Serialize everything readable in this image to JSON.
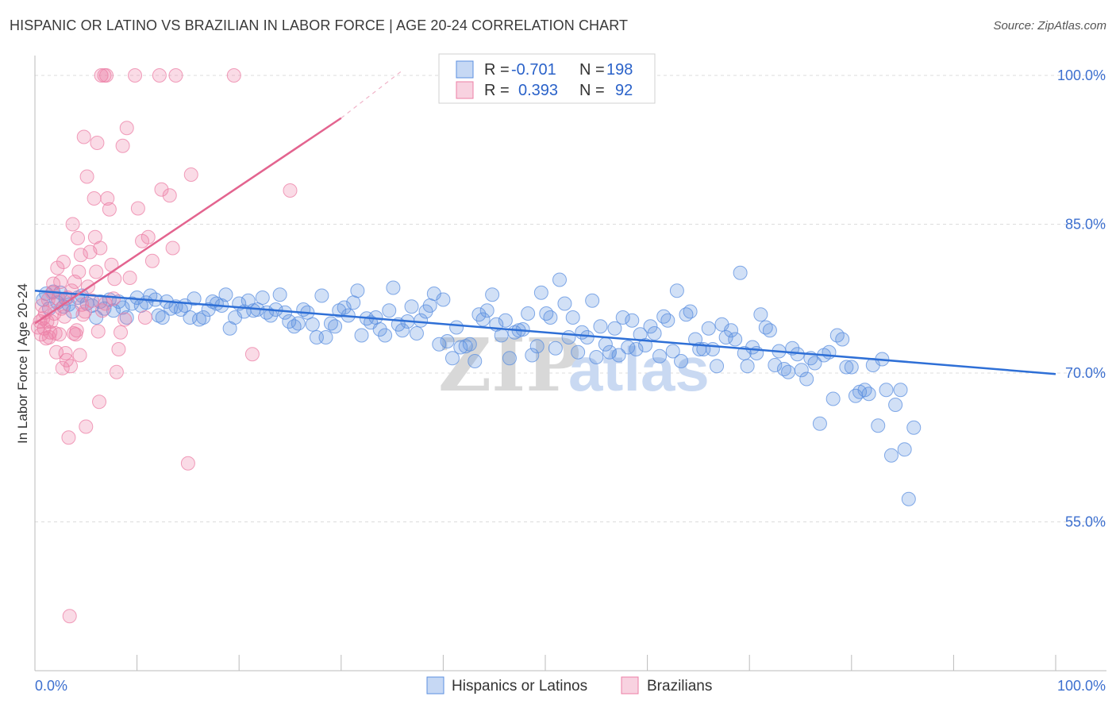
{
  "header": {
    "title": "HISPANIC OR LATINO VS BRAZILIAN IN LABOR FORCE | AGE 20-24 CORRELATION CHART",
    "source": "Source: ZipAtlas.com"
  },
  "watermark": {
    "zip": "ZIP",
    "atlas": "atlas"
  },
  "legend": {
    "rows": [
      {
        "r_label": "R =",
        "r_value": "-0.701",
        "n_label": "N =",
        "n_value": "198",
        "color": "#5b8fe0"
      },
      {
        "r_label": "R =",
        "r_value": "0.393",
        "n_label": "N =",
        "n_value": "92",
        "color": "#ec7fa6"
      }
    ]
  },
  "bottom_legend": [
    {
      "label": "Hispanics or Latinos",
      "color": "#5b8fe0"
    },
    {
      "label": "Brazilians",
      "color": "#ec7fa6"
    }
  ],
  "chart_data": {
    "type": "scatter",
    "title": "HISPANIC OR LATINO VS BRAZILIAN IN LABOR FORCE | AGE 20-24 CORRELATION CHART",
    "xlabel": "",
    "ylabel": "In Labor Force | Age 20-24",
    "xlim": [
      0,
      100
    ],
    "ylim": [
      40,
      102
    ],
    "x_tick_labels": [
      "0.0%",
      "100.0%"
    ],
    "y_ticks": [
      55,
      70,
      85,
      100
    ],
    "y_tick_labels": [
      "55.0%",
      "70.0%",
      "85.0%",
      "100.0%"
    ],
    "grid": true,
    "legend_position": "top-center",
    "series": [
      {
        "name": "Hispanics or Latinos",
        "color": "#5b8fe0",
        "trend": {
          "x": [
            0,
            100
          ],
          "y": [
            78.3,
            69.9
          ]
        },
        "points": [
          [
            0.8,
            77.4
          ],
          [
            1.1,
            78.0
          ],
          [
            1.4,
            76.5
          ],
          [
            1.8,
            78.2
          ],
          [
            2.2,
            77.1
          ],
          [
            2.5,
            78.1
          ],
          [
            2.8,
            76.7
          ],
          [
            3.0,
            77.5
          ],
          [
            3.3,
            76.9
          ],
          [
            3.7,
            76.2
          ],
          [
            4.2,
            77.6
          ],
          [
            4.6,
            77.8
          ],
          [
            5.1,
            77.0
          ],
          [
            5.6,
            76.8
          ],
          [
            6.0,
            75.6
          ],
          [
            6.4,
            77.2
          ],
          [
            6.8,
            76.5
          ],
          [
            7.3,
            77.4
          ],
          [
            7.7,
            76.3
          ],
          [
            8.2,
            77.2
          ],
          [
            8.6,
            76.6
          ],
          [
            9.0,
            75.6
          ],
          [
            9.5,
            77.0
          ],
          [
            10.0,
            77.6
          ],
          [
            10.4,
            76.8
          ],
          [
            10.9,
            77.1
          ],
          [
            11.3,
            77.8
          ],
          [
            11.8,
            77.4
          ],
          [
            12.1,
            75.8
          ],
          [
            12.5,
            75.6
          ],
          [
            12.9,
            77.2
          ],
          [
            13.3,
            76.5
          ],
          [
            13.8,
            76.7
          ],
          [
            14.3,
            76.4
          ],
          [
            14.7,
            76.8
          ],
          [
            15.2,
            75.6
          ],
          [
            15.6,
            77.5
          ],
          [
            16.1,
            75.4
          ],
          [
            16.5,
            75.6
          ],
          [
            17.0,
            76.4
          ],
          [
            17.4,
            77.2
          ],
          [
            17.8,
            77.0
          ],
          [
            18.3,
            76.8
          ],
          [
            18.7,
            77.9
          ],
          [
            19.1,
            74.5
          ],
          [
            19.6,
            75.6
          ],
          [
            20.0,
            77.0
          ],
          [
            20.5,
            76.2
          ],
          [
            20.9,
            77.3
          ],
          [
            21.4,
            76.3
          ],
          [
            21.8,
            76.4
          ],
          [
            22.3,
            77.6
          ],
          [
            22.7,
            76.1
          ],
          [
            23.1,
            75.8
          ],
          [
            23.6,
            76.4
          ],
          [
            24.0,
            77.9
          ],
          [
            24.5,
            76.1
          ],
          [
            24.9,
            75.2
          ],
          [
            25.4,
            74.7
          ],
          [
            25.8,
            75.0
          ],
          [
            26.3,
            76.4
          ],
          [
            26.7,
            76.1
          ],
          [
            27.2,
            74.9
          ],
          [
            27.6,
            73.6
          ],
          [
            28.1,
            77.8
          ],
          [
            28.5,
            73.6
          ],
          [
            29.0,
            75.0
          ],
          [
            29.4,
            74.7
          ],
          [
            29.8,
            76.3
          ],
          [
            30.3,
            76.6
          ],
          [
            30.7,
            75.8
          ],
          [
            31.2,
            77.1
          ],
          [
            31.6,
            78.3
          ],
          [
            32.0,
            73.8
          ],
          [
            32.5,
            75.5
          ],
          [
            32.9,
            75.1
          ],
          [
            33.4,
            75.6
          ],
          [
            33.8,
            74.4
          ],
          [
            34.3,
            73.8
          ],
          [
            34.7,
            76.3
          ],
          [
            35.1,
            78.6
          ],
          [
            35.6,
            74.9
          ],
          [
            36.0,
            74.3
          ],
          [
            36.5,
            75.2
          ],
          [
            36.9,
            76.7
          ],
          [
            37.4,
            74.0
          ],
          [
            37.8,
            75.3
          ],
          [
            38.3,
            76.2
          ],
          [
            38.7,
            76.8
          ],
          [
            39.1,
            78.0
          ],
          [
            39.6,
            72.9
          ],
          [
            40.0,
            77.4
          ],
          [
            40.4,
            73.2
          ],
          [
            40.9,
            71.5
          ],
          [
            41.3,
            74.6
          ],
          [
            41.7,
            72.6
          ],
          [
            42.2,
            72.7
          ],
          [
            42.6,
            72.9
          ],
          [
            43.1,
            71.2
          ],
          [
            43.5,
            75.9
          ],
          [
            43.9,
            75.4
          ],
          [
            44.3,
            76.3
          ],
          [
            44.8,
            77.9
          ],
          [
            45.2,
            74.9
          ],
          [
            45.7,
            73.8
          ],
          [
            46.1,
            75.3
          ],
          [
            46.5,
            71.5
          ],
          [
            47.0,
            74.1
          ],
          [
            47.4,
            74.3
          ],
          [
            47.8,
            74.4
          ],
          [
            48.3,
            76.0
          ],
          [
            48.7,
            71.8
          ],
          [
            49.2,
            72.7
          ],
          [
            49.6,
            78.1
          ],
          [
            50.1,
            76.0
          ],
          [
            50.5,
            75.6
          ],
          [
            51.0,
            72.5
          ],
          [
            51.4,
            79.4
          ],
          [
            51.9,
            77.0
          ],
          [
            52.3,
            73.6
          ],
          [
            52.7,
            75.6
          ],
          [
            53.2,
            72.1
          ],
          [
            53.6,
            74.1
          ],
          [
            54.1,
            73.6
          ],
          [
            54.6,
            77.3
          ],
          [
            55.0,
            71.6
          ],
          [
            55.4,
            74.7
          ],
          [
            55.9,
            72.9
          ],
          [
            56.3,
            72.1
          ],
          [
            56.8,
            74.5
          ],
          [
            57.2,
            71.8
          ],
          [
            57.6,
            75.6
          ],
          [
            58.1,
            72.6
          ],
          [
            58.5,
            75.3
          ],
          [
            58.9,
            72.4
          ],
          [
            59.3,
            73.9
          ],
          [
            59.8,
            72.8
          ],
          [
            60.3,
            74.7
          ],
          [
            60.7,
            74.0
          ],
          [
            61.2,
            71.7
          ],
          [
            61.6,
            75.7
          ],
          [
            62.0,
            75.3
          ],
          [
            62.5,
            72.2
          ],
          [
            62.9,
            78.3
          ],
          [
            63.3,
            71.2
          ],
          [
            63.8,
            75.9
          ],
          [
            64.2,
            76.2
          ],
          [
            64.7,
            73.4
          ],
          [
            65.1,
            72.4
          ],
          [
            65.5,
            72.4
          ],
          [
            66.0,
            74.5
          ],
          [
            66.4,
            72.4
          ],
          [
            66.8,
            70.7
          ],
          [
            67.3,
            74.9
          ],
          [
            67.7,
            73.6
          ],
          [
            68.2,
            74.3
          ],
          [
            68.6,
            73.4
          ],
          [
            69.1,
            80.1
          ],
          [
            69.5,
            72.0
          ],
          [
            69.8,
            70.7
          ],
          [
            70.3,
            72.6
          ],
          [
            70.7,
            72.0
          ],
          [
            71.1,
            75.9
          ],
          [
            71.6,
            74.6
          ],
          [
            72.0,
            74.3
          ],
          [
            72.5,
            70.8
          ],
          [
            72.9,
            72.2
          ],
          [
            73.4,
            70.4
          ],
          [
            73.8,
            70.1
          ],
          [
            74.2,
            72.5
          ],
          [
            74.7,
            71.9
          ],
          [
            75.1,
            70.3
          ],
          [
            75.6,
            69.4
          ],
          [
            76.0,
            71.5
          ],
          [
            76.4,
            71.0
          ],
          [
            76.9,
            64.9
          ],
          [
            77.3,
            71.8
          ],
          [
            77.8,
            72.1
          ],
          [
            78.2,
            67.4
          ],
          [
            78.6,
            73.8
          ],
          [
            79.1,
            73.4
          ],
          [
            79.5,
            70.6
          ],
          [
            80.0,
            70.6
          ],
          [
            80.4,
            67.7
          ],
          [
            80.8,
            68.1
          ],
          [
            81.3,
            68.3
          ],
          [
            81.7,
            67.9
          ],
          [
            82.1,
            70.8
          ],
          [
            82.6,
            64.7
          ],
          [
            83.0,
            71.4
          ],
          [
            83.4,
            68.3
          ],
          [
            83.9,
            61.7
          ],
          [
            84.3,
            66.8
          ],
          [
            84.8,
            68.3
          ],
          [
            85.2,
            62.3
          ],
          [
            85.6,
            57.3
          ],
          [
            86.1,
            64.5
          ]
        ]
      },
      {
        "name": "Brazilians",
        "color": "#ec7fa6",
        "trend": {
          "x": [
            0,
            30
          ],
          "y": [
            75.0,
            95.7
          ]
        },
        "trend_dashed": {
          "x": [
            30,
            36
          ],
          "y": [
            95.7,
            100.5
          ]
        },
        "points": [
          [
            0.3,
            74.6
          ],
          [
            0.5,
            75.2
          ],
          [
            0.6,
            73.9
          ],
          [
            0.7,
            76.8
          ],
          [
            0.8,
            75.5
          ],
          [
            0.9,
            74.5
          ],
          [
            1.0,
            76.1
          ],
          [
            1.1,
            73.5
          ],
          [
            1.2,
            75.2
          ],
          [
            1.3,
            77.4
          ],
          [
            1.4,
            73.6
          ],
          [
            1.5,
            74.1
          ],
          [
            1.6,
            75.2
          ],
          [
            1.7,
            78.1
          ],
          [
            1.8,
            79.0
          ],
          [
            1.9,
            76.0
          ],
          [
            2.0,
            74.0
          ],
          [
            2.1,
            72.1
          ],
          [
            2.2,
            80.6
          ],
          [
            2.3,
            77.5
          ],
          [
            2.4,
            73.9
          ],
          [
            2.5,
            79.2
          ],
          [
            2.6,
            76.5
          ],
          [
            2.7,
            70.5
          ],
          [
            2.8,
            81.2
          ],
          [
            2.9,
            75.7
          ],
          [
            3.0,
            72.0
          ],
          [
            3.1,
            71.3
          ],
          [
            3.2,
            77.6
          ],
          [
            3.3,
            63.5
          ],
          [
            3.4,
            45.5
          ],
          [
            3.5,
            70.7
          ],
          [
            3.6,
            78.3
          ],
          [
            3.7,
            85.0
          ],
          [
            3.8,
            74.0
          ],
          [
            3.9,
            79.2
          ],
          [
            4.0,
            73.9
          ],
          [
            4.1,
            74.3
          ],
          [
            4.2,
            83.6
          ],
          [
            4.3,
            80.2
          ],
          [
            4.4,
            71.8
          ],
          [
            4.5,
            81.9
          ],
          [
            4.6,
            76.9
          ],
          [
            4.7,
            75.9
          ],
          [
            4.8,
            93.8
          ],
          [
            4.9,
            76.2
          ],
          [
            5.0,
            64.6
          ],
          [
            5.1,
            89.8
          ],
          [
            5.2,
            78.7
          ],
          [
            5.4,
            82.2
          ],
          [
            5.6,
            77.3
          ],
          [
            5.8,
            87.6
          ],
          [
            5.9,
            83.7
          ],
          [
            6.0,
            80.2
          ],
          [
            6.1,
            93.2
          ],
          [
            6.2,
            74.2
          ],
          [
            6.3,
            67.1
          ],
          [
            6.4,
            82.6
          ],
          [
            6.5,
            100.0
          ],
          [
            6.6,
            76.3
          ],
          [
            6.8,
            100.0
          ],
          [
            6.9,
            77.0
          ],
          [
            7.0,
            100.0
          ],
          [
            7.1,
            87.6
          ],
          [
            7.3,
            86.5
          ],
          [
            7.5,
            80.9
          ],
          [
            7.7,
            77.5
          ],
          [
            7.8,
            79.5
          ],
          [
            8.0,
            70.1
          ],
          [
            8.2,
            72.4
          ],
          [
            8.4,
            74.1
          ],
          [
            8.6,
            92.9
          ],
          [
            8.8,
            75.4
          ],
          [
            9.0,
            94.7
          ],
          [
            9.3,
            79.6
          ],
          [
            9.8,
            100.0
          ],
          [
            10.1,
            86.6
          ],
          [
            10.5,
            83.3
          ],
          [
            10.8,
            75.6
          ],
          [
            11.1,
            83.7
          ],
          [
            11.5,
            81.3
          ],
          [
            12.2,
            100.0
          ],
          [
            12.4,
            88.5
          ],
          [
            13.2,
            87.9
          ],
          [
            13.5,
            82.6
          ],
          [
            13.8,
            100.0
          ],
          [
            15.0,
            60.9
          ],
          [
            15.3,
            90.0
          ],
          [
            19.5,
            100.0
          ],
          [
            21.3,
            71.9
          ],
          [
            25.0,
            88.4
          ]
        ]
      }
    ]
  }
}
